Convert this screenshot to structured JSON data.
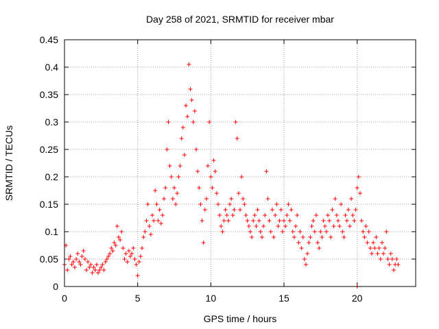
{
  "chart_data": {
    "type": "scatter",
    "title": "Day 258 of 2021, SRMTID for receiver mbar",
    "xlabel": "GPS time / hours",
    "ylabel": "SRMTID / TECUs",
    "xlim": [
      0,
      24
    ],
    "ylim": [
      0,
      0.45
    ],
    "grid": true,
    "x_ticks": [
      0,
      5,
      10,
      15,
      20
    ],
    "x_tick_labels": [
      "0",
      "5",
      "10",
      "15",
      "20"
    ],
    "y_ticks": [
      0,
      0.05,
      0.1,
      0.15,
      0.2,
      0.25,
      0.3,
      0.35,
      0.4,
      0.45
    ],
    "y_tick_labels": [
      "0",
      "0.05",
      "0.1",
      "0.15",
      "0.2",
      "0.25",
      "0.3",
      "0.35",
      "0.4",
      "0.45"
    ],
    "marker": "+",
    "color": "#ff0000",
    "series": [
      {
        "name": "SRMTID",
        "points": [
          [
            0.0,
            0.04
          ],
          [
            0.1,
            0.075
          ],
          [
            0.2,
            0.03
          ],
          [
            0.3,
            0.05
          ],
          [
            0.4,
            0.055
          ],
          [
            0.5,
            0.04
          ],
          [
            0.6,
            0.045
          ],
          [
            0.7,
            0.035
          ],
          [
            0.8,
            0.05
          ],
          [
            0.9,
            0.06
          ],
          [
            1.0,
            0.045
          ],
          [
            1.1,
            0.04
          ],
          [
            1.2,
            0.055
          ],
          [
            1.3,
            0.065
          ],
          [
            1.4,
            0.05
          ],
          [
            1.5,
            0.03
          ],
          [
            1.6,
            0.045
          ],
          [
            1.7,
            0.035
          ],
          [
            1.8,
            0.04
          ],
          [
            1.9,
            0.025
          ],
          [
            2.0,
            0.035
          ],
          [
            2.1,
            0.03
          ],
          [
            2.2,
            0.04
          ],
          [
            2.3,
            0.025
          ],
          [
            2.4,
            0.03
          ],
          [
            2.5,
            0.035
          ],
          [
            2.6,
            0.04
          ],
          [
            2.7,
            0.03
          ],
          [
            2.8,
            0.045
          ],
          [
            2.9,
            0.05
          ],
          [
            3.0,
            0.055
          ],
          [
            3.1,
            0.06
          ],
          [
            3.2,
            0.07
          ],
          [
            3.3,
            0.065
          ],
          [
            3.4,
            0.08
          ],
          [
            3.5,
            0.075
          ],
          [
            3.6,
            0.11
          ],
          [
            3.7,
            0.09
          ],
          [
            3.8,
            0.085
          ],
          [
            3.9,
            0.1
          ],
          [
            4.0,
            0.07
          ],
          [
            4.1,
            0.05
          ],
          [
            4.2,
            0.06
          ],
          [
            4.3,
            0.045
          ],
          [
            4.4,
            0.065
          ],
          [
            4.5,
            0.055
          ],
          [
            4.6,
            0.06
          ],
          [
            4.7,
            0.07
          ],
          [
            4.8,
            0.05
          ],
          [
            4.9,
            0.04
          ],
          [
            5.0,
            0.02
          ],
          [
            5.1,
            0.045
          ],
          [
            5.2,
            0.055
          ],
          [
            5.3,
            0.07
          ],
          [
            5.4,
            0.09
          ],
          [
            5.5,
            0.1
          ],
          [
            5.6,
            0.12
          ],
          [
            5.7,
            0.15
          ],
          [
            5.8,
            0.11
          ],
          [
            5.9,
            0.095
          ],
          [
            6.0,
            0.13
          ],
          [
            6.1,
            0.12
          ],
          [
            6.2,
            0.175
          ],
          [
            6.3,
            0.15
          ],
          [
            6.4,
            0.12
          ],
          [
            6.5,
            0.14
          ],
          [
            6.6,
            0.115
          ],
          [
            6.7,
            0.13
          ],
          [
            6.8,
            0.16
          ],
          [
            6.9,
            0.18
          ],
          [
            7.0,
            0.25
          ],
          [
            7.1,
            0.3
          ],
          [
            7.2,
            0.22
          ],
          [
            7.3,
            0.2
          ],
          [
            7.4,
            0.16
          ],
          [
            7.5,
            0.18
          ],
          [
            7.6,
            0.15
          ],
          [
            7.7,
            0.17
          ],
          [
            7.8,
            0.2
          ],
          [
            7.9,
            0.22
          ],
          [
            8.0,
            0.27
          ],
          [
            8.1,
            0.29
          ],
          [
            8.2,
            0.24
          ],
          [
            8.3,
            0.33
          ],
          [
            8.4,
            0.31
          ],
          [
            8.5,
            0.405
          ],
          [
            8.6,
            0.36
          ],
          [
            8.7,
            0.34
          ],
          [
            8.8,
            0.3
          ],
          [
            8.9,
            0.32
          ],
          [
            9.0,
            0.25
          ],
          [
            9.1,
            0.21
          ],
          [
            9.2,
            0.18
          ],
          [
            9.3,
            0.15
          ],
          [
            9.4,
            0.12
          ],
          [
            9.5,
            0.08
          ],
          [
            9.6,
            0.14
          ],
          [
            9.7,
            0.16
          ],
          [
            9.8,
            0.22
          ],
          [
            9.9,
            0.3
          ],
          [
            10.0,
            0.2
          ],
          [
            10.1,
            0.18
          ],
          [
            10.2,
            0.23
          ],
          [
            10.3,
            0.21
          ],
          [
            10.4,
            0.17
          ],
          [
            10.5,
            0.15
          ],
          [
            10.6,
            0.13
          ],
          [
            10.7,
            0.11
          ],
          [
            10.8,
            0.1
          ],
          [
            10.9,
            0.12
          ],
          [
            11.0,
            0.14
          ],
          [
            11.1,
            0.13
          ],
          [
            11.2,
            0.12
          ],
          [
            11.3,
            0.15
          ],
          [
            11.4,
            0.16
          ],
          [
            11.5,
            0.13
          ],
          [
            11.6,
            0.14
          ],
          [
            11.7,
            0.3
          ],
          [
            11.8,
            0.27
          ],
          [
            11.9,
            0.17
          ],
          [
            12.0,
            0.14
          ],
          [
            12.1,
            0.2
          ],
          [
            12.2,
            0.16
          ],
          [
            12.3,
            0.15
          ],
          [
            12.4,
            0.13
          ],
          [
            12.5,
            0.12
          ],
          [
            12.6,
            0.11
          ],
          [
            12.7,
            0.1
          ],
          [
            12.8,
            0.09
          ],
          [
            12.9,
            0.12
          ],
          [
            13.0,
            0.13
          ],
          [
            13.1,
            0.11
          ],
          [
            13.2,
            0.14
          ],
          [
            13.3,
            0.12
          ],
          [
            13.4,
            0.1
          ],
          [
            13.5,
            0.09
          ],
          [
            13.6,
            0.11
          ],
          [
            13.7,
            0.13
          ],
          [
            13.8,
            0.21
          ],
          [
            13.9,
            0.16
          ],
          [
            14.0,
            0.12
          ],
          [
            14.1,
            0.1
          ],
          [
            14.2,
            0.14
          ],
          [
            14.3,
            0.09
          ],
          [
            14.4,
            0.13
          ],
          [
            14.5,
            0.15
          ],
          [
            14.6,
            0.11
          ],
          [
            14.7,
            0.12
          ],
          [
            14.8,
            0.14
          ],
          [
            14.9,
            0.1
          ],
          [
            15.0,
            0.12
          ],
          [
            15.1,
            0.11
          ],
          [
            15.2,
            0.13
          ],
          [
            15.3,
            0.15
          ],
          [
            15.4,
            0.12
          ],
          [
            15.5,
            0.14
          ],
          [
            15.6,
            0.1
          ],
          [
            15.7,
            0.09
          ],
          [
            15.8,
            0.11
          ],
          [
            15.9,
            0.13
          ],
          [
            16.0,
            0.08
          ],
          [
            16.1,
            0.1
          ],
          [
            16.2,
            0.07
          ],
          [
            16.3,
            0.09
          ],
          [
            16.4,
            0.05
          ],
          [
            16.5,
            0.04
          ],
          [
            16.6,
            0.06
          ],
          [
            16.7,
            0.08
          ],
          [
            16.8,
            0.09
          ],
          [
            16.9,
            0.11
          ],
          [
            17.0,
            0.12
          ],
          [
            17.1,
            0.1
          ],
          [
            17.2,
            0.13
          ],
          [
            17.3,
            0.08
          ],
          [
            17.4,
            0.07
          ],
          [
            17.5,
            0.1
          ],
          [
            17.6,
            0.09
          ],
          [
            17.7,
            0.12
          ],
          [
            17.8,
            0.11
          ],
          [
            17.9,
            0.1
          ],
          [
            18.0,
            0.13
          ],
          [
            18.1,
            0.12
          ],
          [
            18.2,
            0.09
          ],
          [
            18.3,
            0.14
          ],
          [
            18.4,
            0.11
          ],
          [
            18.5,
            0.16
          ],
          [
            18.6,
            0.13
          ],
          [
            18.7,
            0.12
          ],
          [
            18.8,
            0.11
          ],
          [
            18.9,
            0.15
          ],
          [
            19.0,
            0.1
          ],
          [
            19.1,
            0.09
          ],
          [
            19.2,
            0.13
          ],
          [
            19.3,
            0.12
          ],
          [
            19.4,
            0.14
          ],
          [
            19.5,
            0.11
          ],
          [
            19.6,
            0.16
          ],
          [
            19.7,
            0.13
          ],
          [
            19.8,
            0.12
          ],
          [
            19.9,
            0.14
          ],
          [
            20.0,
            0.18
          ],
          [
            20.1,
            0.2
          ],
          [
            20.2,
            0.17
          ],
          [
            20.3,
            0.12
          ],
          [
            20.4,
            0.1
          ],
          [
            20.5,
            0.09
          ],
          [
            20.6,
            0.11
          ],
          [
            20.7,
            0.08
          ],
          [
            20.8,
            0.1
          ],
          [
            20.9,
            0.07
          ],
          [
            21.0,
            0.06
          ],
          [
            21.1,
            0.08
          ],
          [
            21.2,
            0.07
          ],
          [
            21.3,
            0.09
          ],
          [
            21.4,
            0.06
          ],
          [
            21.5,
            0.07
          ],
          [
            21.6,
            0.05
          ],
          [
            21.7,
            0.08
          ],
          [
            21.8,
            0.06
          ],
          [
            21.9,
            0.07
          ],
          [
            22.0,
            0.1
          ],
          [
            22.1,
            0.05
          ],
          [
            22.2,
            0.04
          ],
          [
            22.3,
            0.06
          ],
          [
            22.4,
            0.05
          ],
          [
            22.5,
            0.03
          ],
          [
            22.6,
            0.04
          ],
          [
            22.7,
            0.05
          ],
          [
            22.8,
            0.04
          ],
          [
            20.0,
            0.0
          ]
        ]
      }
    ]
  }
}
